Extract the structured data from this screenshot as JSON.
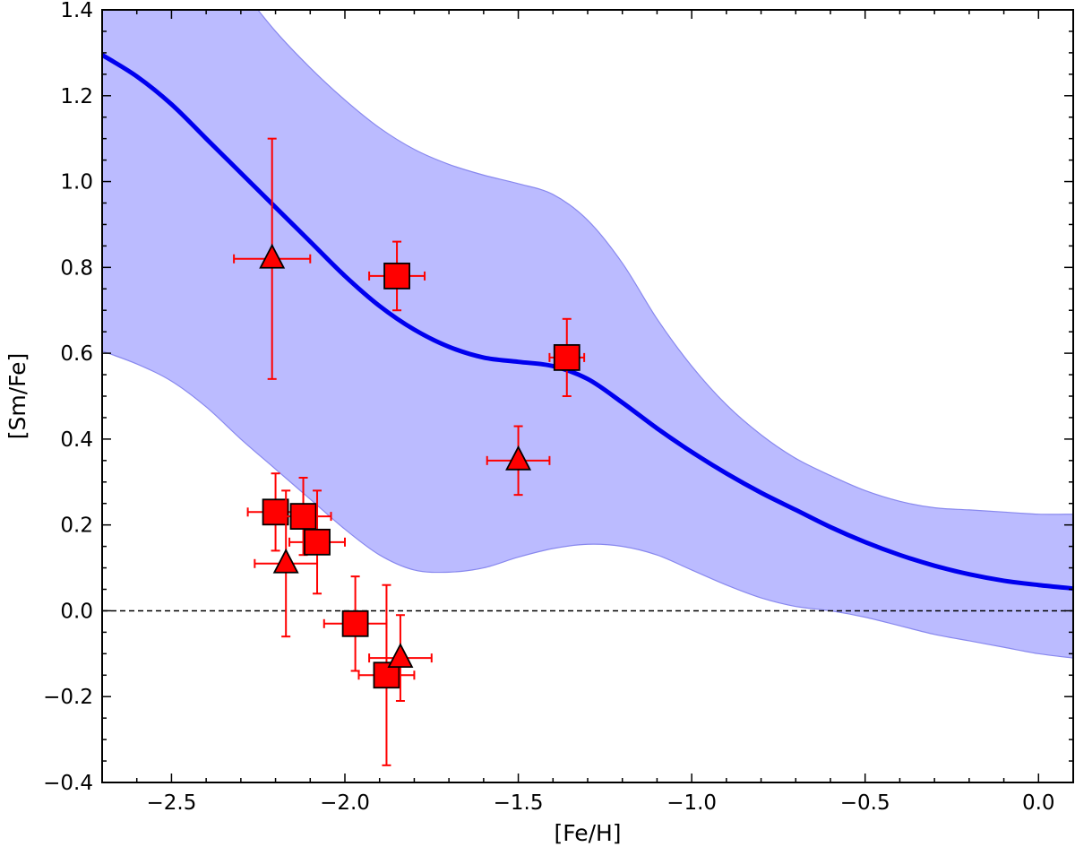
{
  "chart_data": {
    "type": "scatter",
    "title": "",
    "xlabel": "[Fe/H]",
    "ylabel": "[Sm/Fe]",
    "xlim": [
      -2.7,
      0.1
    ],
    "ylim": [
      -0.4,
      1.4
    ],
    "grid": false,
    "legend": "none",
    "x_ticks": [
      {
        "value": -2.5,
        "label": "−2.5"
      },
      {
        "value": -2.0,
        "label": "−2.0"
      },
      {
        "value": -1.5,
        "label": "−1.5"
      },
      {
        "value": -1.0,
        "label": "−1.0"
      },
      {
        "value": -0.5,
        "label": "−0.5"
      },
      {
        "value": 0.0,
        "label": "0.0"
      }
    ],
    "y_ticks": [
      {
        "value": -0.4,
        "label": "−0.4"
      },
      {
        "value": -0.2,
        "label": "−0.2"
      },
      {
        "value": 0.0,
        "label": "0.0"
      },
      {
        "value": 0.2,
        "label": "0.2"
      },
      {
        "value": 0.4,
        "label": "0.4"
      },
      {
        "value": 0.6,
        "label": "0.6"
      },
      {
        "value": 0.8,
        "label": "0.8"
      },
      {
        "value": 1.0,
        "label": "1.0"
      },
      {
        "value": 1.2,
        "label": "1.2"
      },
      {
        "value": 1.4,
        "label": "1.4"
      }
    ],
    "reference_line": {
      "y": 0.0,
      "style": "dashed",
      "color": "#000000"
    },
    "model_curve": {
      "color": "#0000ee",
      "x": [
        -2.7,
        -2.6,
        -2.5,
        -2.4,
        -2.3,
        -2.2,
        -2.1,
        -2.0,
        -1.9,
        -1.8,
        -1.7,
        -1.6,
        -1.5,
        -1.4,
        -1.3,
        -1.2,
        -1.1,
        -1.0,
        -0.9,
        -0.8,
        -0.7,
        -0.6,
        -0.5,
        -0.4,
        -0.3,
        -0.2,
        -0.1,
        0.0,
        0.1
      ],
      "y": [
        1.295,
        1.245,
        1.18,
        1.1,
        1.02,
        0.94,
        0.86,
        0.78,
        0.71,
        0.655,
        0.615,
        0.59,
        0.58,
        0.57,
        0.54,
        0.485,
        0.425,
        0.37,
        0.32,
        0.275,
        0.235,
        0.195,
        0.16,
        0.13,
        0.105,
        0.085,
        0.07,
        0.06,
        0.052
      ]
    },
    "model_band": {
      "color": "#bbbbff",
      "edge_color": "#8888ee",
      "x": [
        -2.7,
        -2.6,
        -2.5,
        -2.4,
        -2.3,
        -2.2,
        -2.1,
        -2.0,
        -1.9,
        -1.8,
        -1.7,
        -1.6,
        -1.5,
        -1.4,
        -1.3,
        -1.2,
        -1.1,
        -1.0,
        -0.9,
        -0.8,
        -0.7,
        -0.6,
        -0.5,
        -0.4,
        -0.3,
        -0.2,
        -0.1,
        0.0,
        0.1
      ],
      "lower": [
        0.605,
        0.575,
        0.535,
        0.475,
        0.4,
        0.33,
        0.26,
        0.19,
        0.13,
        0.095,
        0.09,
        0.1,
        0.125,
        0.145,
        0.155,
        0.15,
        0.13,
        0.095,
        0.06,
        0.03,
        0.01,
        0.0,
        -0.015,
        -0.035,
        -0.055,
        -0.07,
        -0.085,
        -0.1,
        -0.11
      ],
      "upper": [
        1.6,
        1.6,
        1.6,
        1.55,
        1.45,
        1.35,
        1.265,
        1.19,
        1.125,
        1.075,
        1.04,
        1.015,
        0.995,
        0.97,
        0.91,
        0.81,
        0.68,
        0.57,
        0.48,
        0.41,
        0.355,
        0.315,
        0.28,
        0.255,
        0.24,
        0.235,
        0.23,
        0.225,
        0.225
      ]
    },
    "series": [
      {
        "marker": "square",
        "color": "#ff0000",
        "points": [
          {
            "x": -2.2,
            "y": 0.23,
            "xerr": 0.08,
            "yerr": 0.09
          },
          {
            "x": -2.12,
            "y": 0.22,
            "xerr": 0.08,
            "yerr": 0.09
          },
          {
            "x": -2.08,
            "y": 0.16,
            "xerr": 0.08,
            "yerr": 0.12
          },
          {
            "x": -1.97,
            "y": -0.03,
            "xerr": 0.09,
            "yerr": 0.11
          },
          {
            "x": -1.85,
            "y": 0.78,
            "xerr": 0.08,
            "yerr": 0.08
          },
          {
            "x": -1.88,
            "y": -0.15,
            "xerr": 0.08,
            "yerr": 0.21
          },
          {
            "x": -1.36,
            "y": 0.59,
            "xerr": 0.05,
            "yerr": 0.09
          }
        ]
      },
      {
        "marker": "triangle",
        "color": "#ff0000",
        "points": [
          {
            "x": -2.21,
            "y": 0.82,
            "xerr": 0.11,
            "yerr": 0.28
          },
          {
            "x": -2.17,
            "y": 0.11,
            "xerr": 0.09,
            "yerr": 0.17
          },
          {
            "x": -1.84,
            "y": -0.11,
            "xerr": 0.09,
            "yerr": 0.1
          },
          {
            "x": -1.5,
            "y": 0.35,
            "xerr": 0.09,
            "yerr": 0.08
          }
        ]
      }
    ]
  }
}
